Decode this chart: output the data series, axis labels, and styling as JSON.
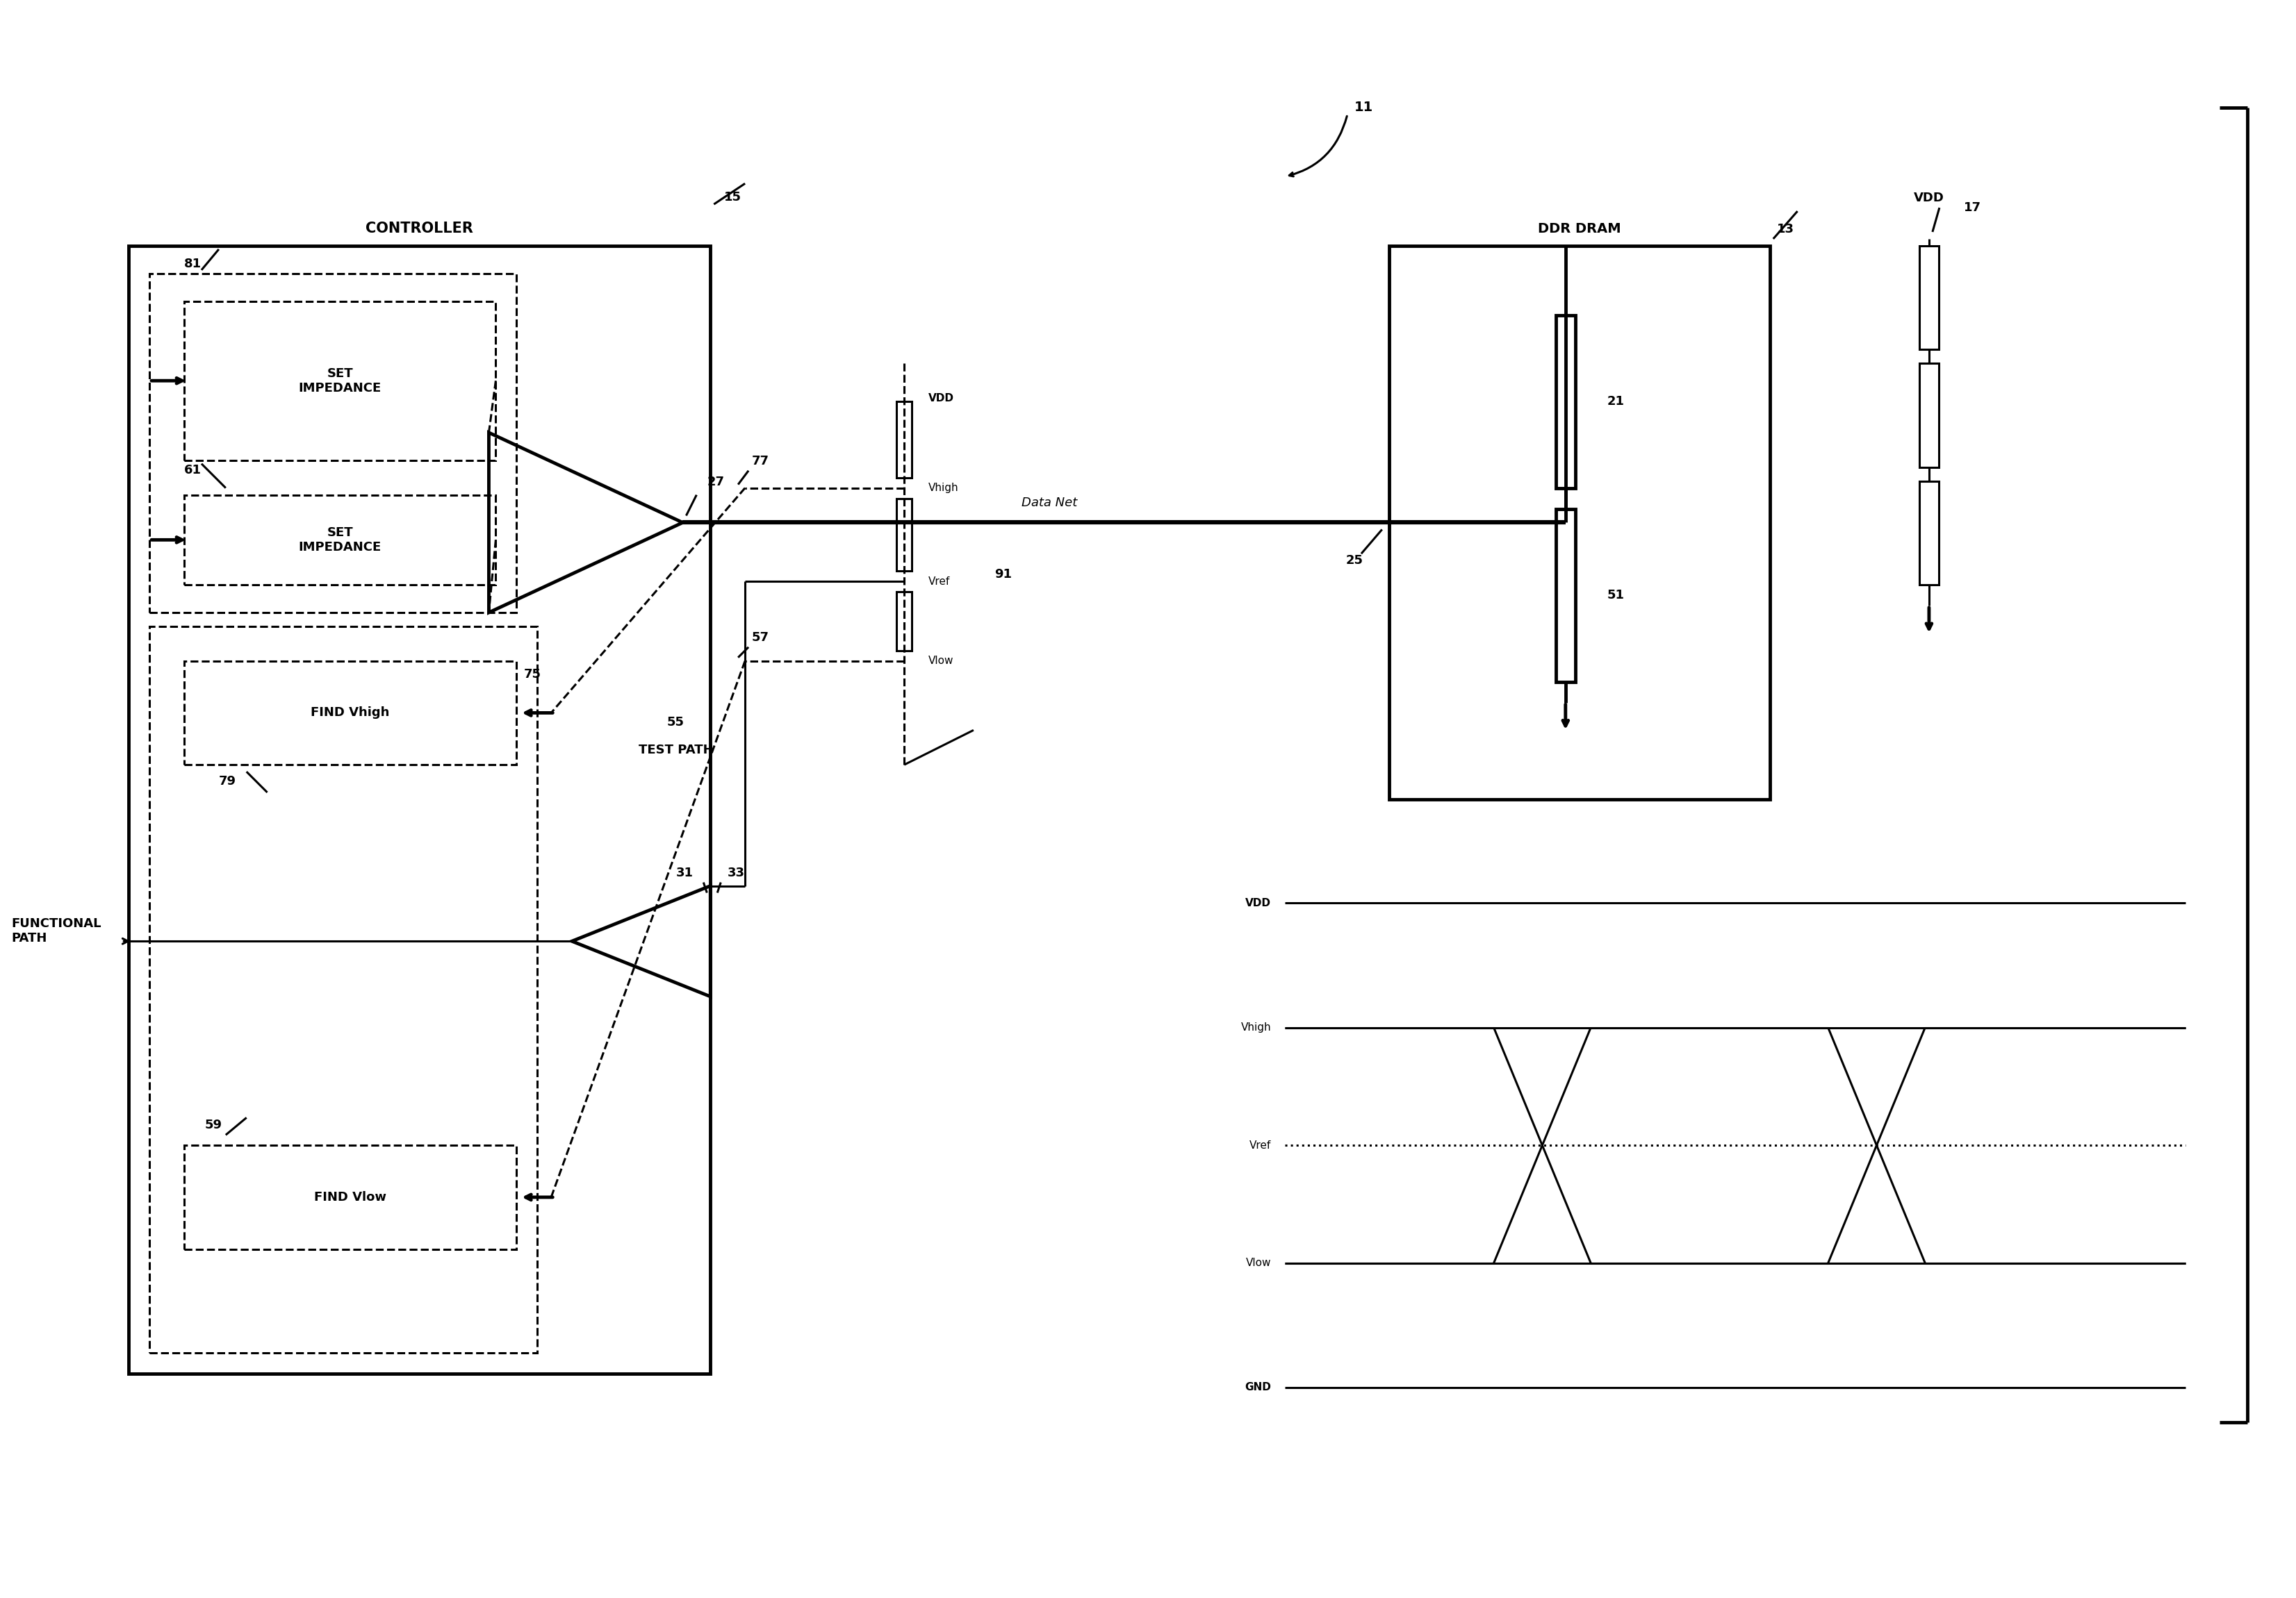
{
  "bg_color": "#ffffff",
  "labels": {
    "controller": "CONTROLLER",
    "ddr_dram": "DDR DRAM",
    "data_net": "Data Net",
    "functional_path": "FUNCTIONAL\nPATH",
    "test_path": "TEST PATH",
    "vdd": "VDD",
    "vhigh": "Vhigh",
    "vref": "Vref",
    "vlow": "Vlow",
    "gnd": "GND",
    "set_impedance": "SET\nIMPEDANCE",
    "find_vhigh": "FIND Vhigh",
    "find_vlow": "FIND Vlow"
  }
}
